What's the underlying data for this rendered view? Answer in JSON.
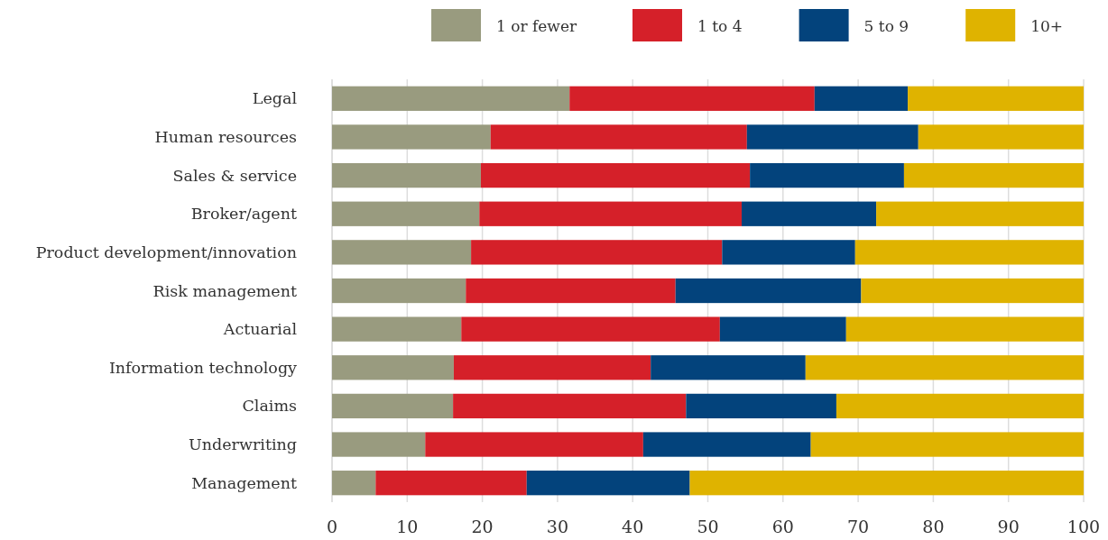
{
  "chart_data": {
    "type": "bar",
    "orientation": "horizontal",
    "stacked": true,
    "categories": [
      "Legal",
      "Human resources",
      "Sales & service",
      "Broker/agent",
      "Product development/innovation",
      "Risk management",
      "Actuarial",
      "Information technology",
      "Claims",
      "Underwriting",
      "Management"
    ],
    "series": [
      {
        "name": "1 or fewer",
        "color": "#999b7f",
        "values": [
          31.6,
          21.1,
          19.8,
          19.6,
          18.5,
          17.8,
          17.2,
          16.2,
          16.1,
          12.4,
          5.8
        ]
      },
      {
        "name": "1 to 4",
        "color": "#d52029",
        "values": [
          32.6,
          34.1,
          35.8,
          34.9,
          33.4,
          27.9,
          34.4,
          26.2,
          31.0,
          29.0,
          20.1
        ]
      },
      {
        "name": "5 to 9",
        "color": "#03437c",
        "values": [
          12.4,
          22.8,
          20.5,
          17.9,
          17.7,
          24.7,
          16.8,
          20.6,
          20.0,
          22.3,
          21.7
        ]
      },
      {
        "name": "10+",
        "color": "#dfb300",
        "values": [
          23.4,
          22.0,
          23.9,
          27.6,
          30.4,
          29.6,
          31.6,
          37.0,
          32.9,
          36.3,
          52.4
        ]
      }
    ],
    "xlim": [
      0,
      100
    ],
    "xticks": [
      0,
      10,
      20,
      30,
      40,
      50,
      60,
      70,
      80,
      90,
      100
    ],
    "grid": "x",
    "legend": "top"
  }
}
